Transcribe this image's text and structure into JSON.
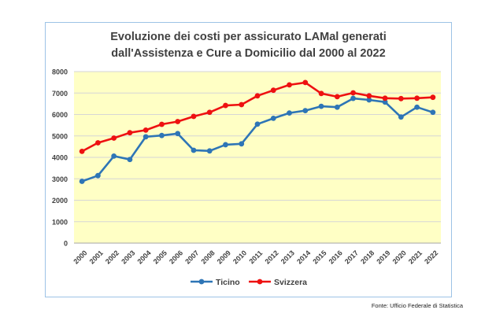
{
  "chart_data": {
    "type": "line",
    "title": [
      "Evoluzione dei costi per assicurato LAMal generati",
      "dall'Assistenza e Cure a Domicilio dal 2000 al 2022"
    ],
    "xlabel": "",
    "ylabel": "",
    "x": [
      "2000",
      "2001",
      "2002",
      "2003",
      "2004",
      "2005",
      "2006",
      "2007",
      "2008",
      "2009",
      "2010",
      "2011",
      "2012",
      "2013",
      "2014",
      "2015",
      "2016",
      "2017",
      "2018",
      "2019",
      "2020",
      "2021",
      "2022"
    ],
    "ylim": [
      0,
      8000
    ],
    "yticks": [
      "0",
      "1000",
      "2000",
      "3000",
      "4000",
      "5000",
      "6000",
      "7000",
      "8000"
    ],
    "grid": true,
    "legend_position": "bottom",
    "plot_background": "#ffffc5",
    "series": [
      {
        "name": "Ticino",
        "color": "#2e75b6",
        "values": [
          2880,
          3150,
          4060,
          3900,
          4960,
          5020,
          5110,
          4330,
          4300,
          4590,
          4630,
          5550,
          5820,
          6070,
          6180,
          6380,
          6340,
          6750,
          6680,
          6580,
          5880,
          6340,
          6100
        ]
      },
      {
        "name": "Svizzera",
        "color": "#ee1111",
        "values": [
          4280,
          4680,
          4900,
          5150,
          5270,
          5540,
          5670,
          5910,
          6100,
          6420,
          6460,
          6870,
          7130,
          7380,
          7490,
          6980,
          6830,
          7010,
          6870,
          6760,
          6740,
          6760,
          6800
        ]
      }
    ]
  },
  "source": "Fonte: Ufficio Federale di Statistica"
}
